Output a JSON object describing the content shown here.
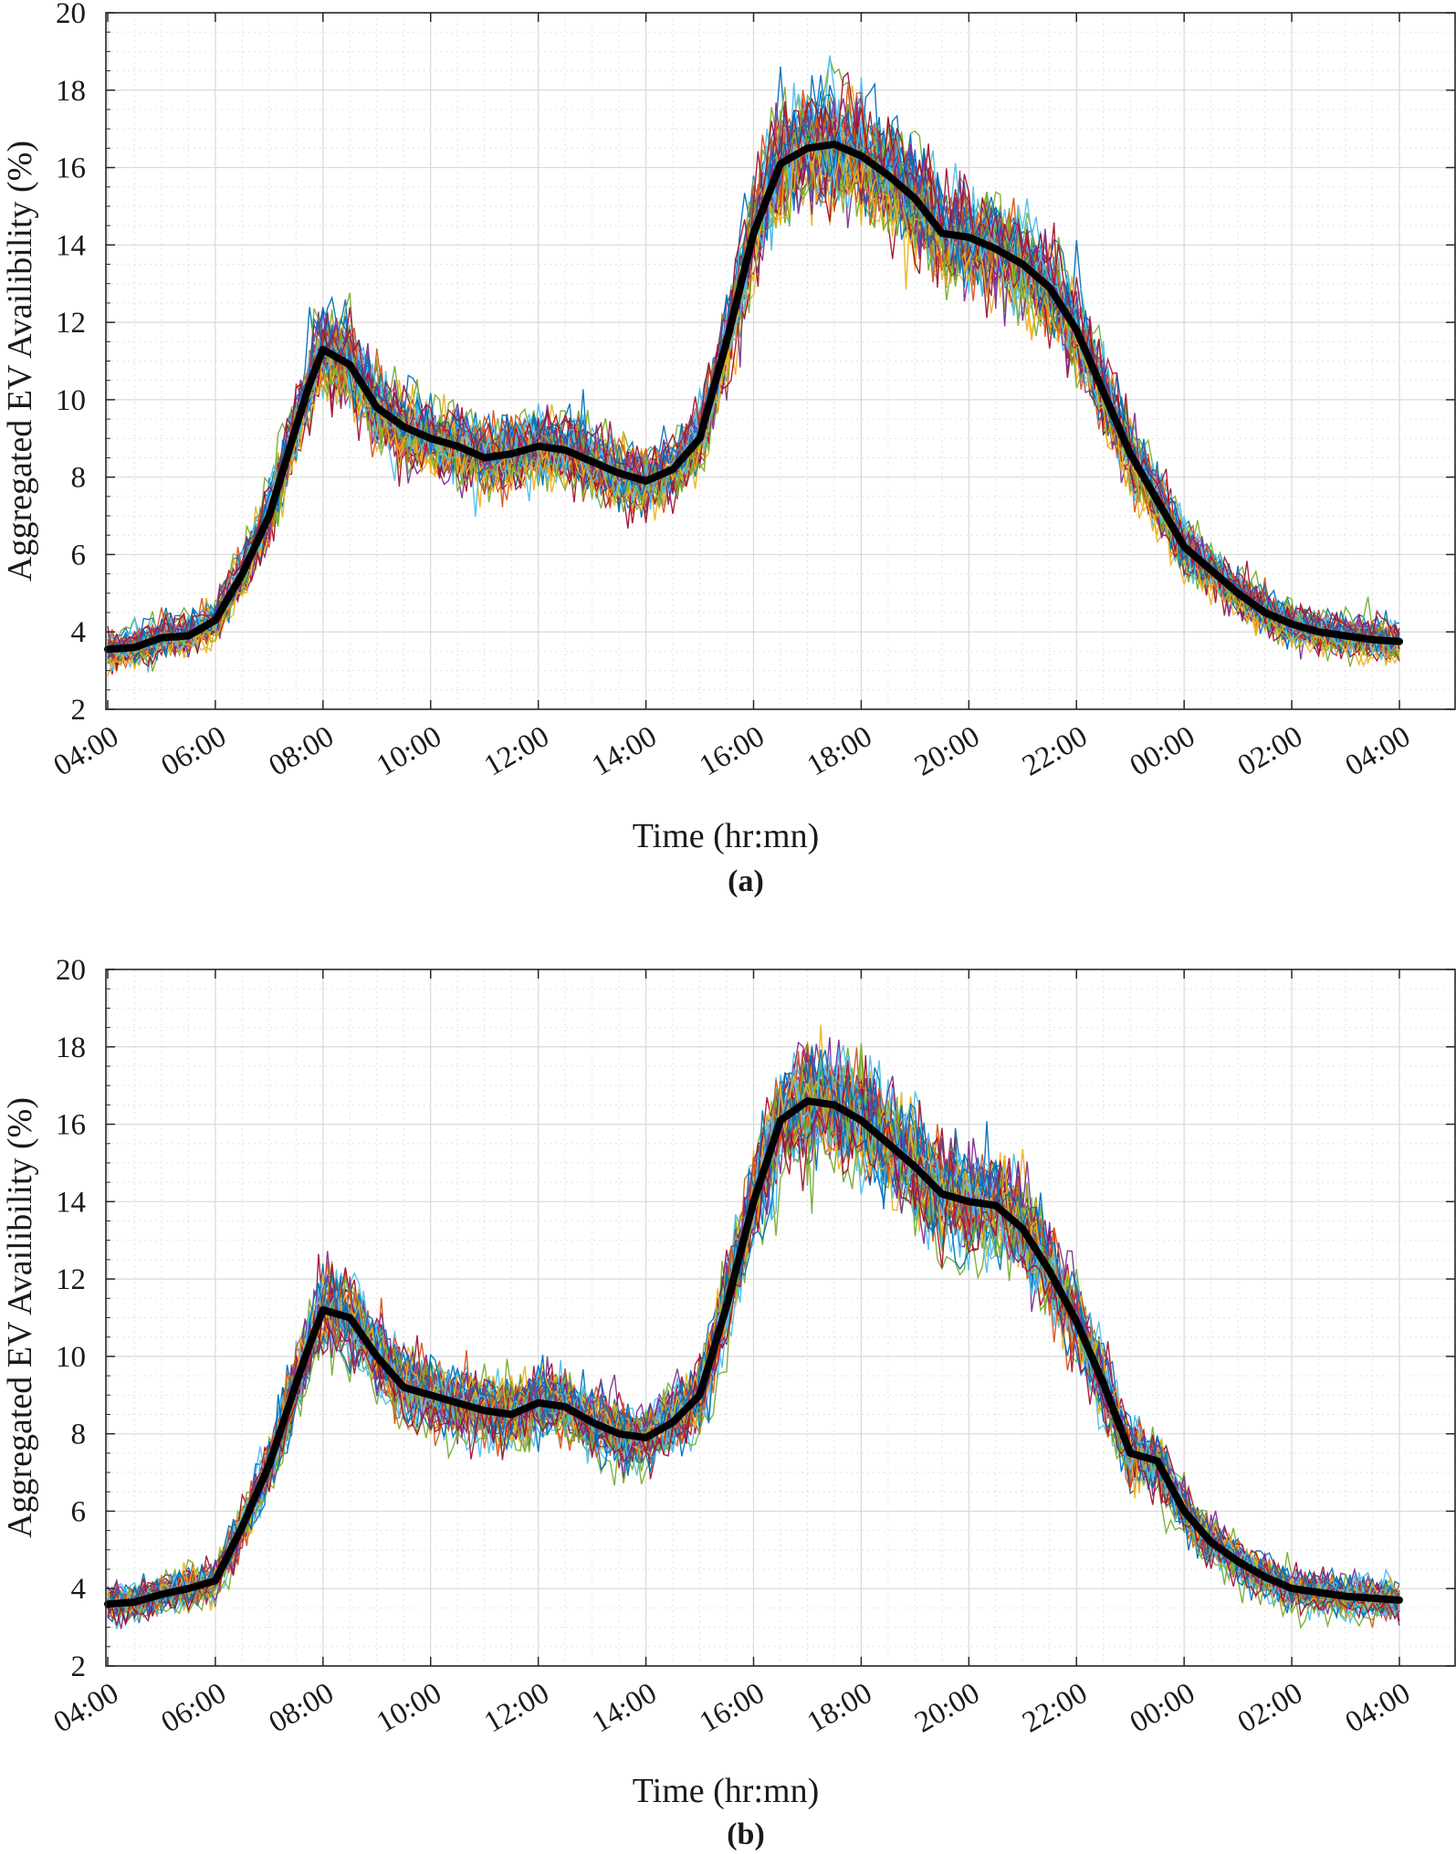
{
  "figure": {
    "panels": [
      "(a)",
      "(b)"
    ]
  },
  "chart_data": [
    {
      "type": "line",
      "panel_label": "(a)",
      "xlabel": "Time (hr:mn)",
      "ylabel": "Aggregated EV Availibility (%)",
      "x_tick_labels": [
        "04:00",
        "06:00",
        "08:00",
        "10:00",
        "12:00",
        "14:00",
        "16:00",
        "18:00",
        "20:00",
        "22:00",
        "00:00",
        "02:00",
        "04:00"
      ],
      "x_hours_from_0400": [
        0,
        24
      ],
      "ylim": [
        2,
        20
      ],
      "y_ticks": [
        2,
        4,
        6,
        8,
        10,
        12,
        14,
        16,
        18,
        20
      ],
      "grid": true,
      "ensemble": {
        "description_count": 50,
        "spread_low": 0.35,
        "spread_peak": 1.8,
        "colors": [
          "#0072BD",
          "#D95319",
          "#EDB120",
          "#7E2F8E",
          "#77AC30",
          "#4DBEEE",
          "#A2142F"
        ],
        "seed": 7
      },
      "mean_series": {
        "color": "#000000",
        "hours_from_0400": [
          0,
          0.5,
          1,
          1.5,
          2,
          2.5,
          3,
          3.5,
          3.75,
          4,
          4.5,
          5,
          5.5,
          6,
          6.5,
          7,
          7.5,
          8,
          8.5,
          9,
          9.5,
          10,
          10.5,
          11,
          11.5,
          12,
          12.5,
          13,
          13.5,
          14,
          14.5,
          15,
          15.5,
          16,
          16.5,
          17,
          17.5,
          18,
          18.5,
          19,
          19.5,
          20,
          20.5,
          21,
          21.5,
          22,
          22.5,
          23,
          23.5,
          24
        ],
        "values": [
          3.55,
          3.6,
          3.85,
          3.9,
          4.3,
          5.5,
          7.0,
          9.3,
          10.4,
          11.3,
          10.9,
          9.8,
          9.3,
          9.0,
          8.8,
          8.5,
          8.6,
          8.8,
          8.7,
          8.4,
          8.1,
          7.9,
          8.2,
          9.0,
          11.5,
          14.3,
          16.1,
          16.5,
          16.6,
          16.3,
          15.8,
          15.2,
          14.3,
          14.2,
          13.9,
          13.5,
          12.9,
          11.8,
          10.2,
          8.6,
          7.4,
          6.2,
          5.6,
          5.0,
          4.5,
          4.2,
          4.0,
          3.9,
          3.8,
          3.75
        ]
      }
    },
    {
      "type": "line",
      "panel_label": "(b)",
      "xlabel": "Time (hr:mn)",
      "ylabel": "Aggregated EV Availibility (%)",
      "x_tick_labels": [
        "04:00",
        "06:00",
        "08:00",
        "10:00",
        "12:00",
        "14:00",
        "16:00",
        "18:00",
        "20:00",
        "22:00",
        "00:00",
        "02:00",
        "04:00"
      ],
      "x_hours_from_0400": [
        0,
        24
      ],
      "ylim": [
        2,
        20
      ],
      "y_ticks": [
        2,
        4,
        6,
        8,
        10,
        12,
        14,
        16,
        18,
        20
      ],
      "grid": true,
      "ensemble": {
        "description_count": 50,
        "spread_low": 0.35,
        "spread_peak": 1.8,
        "colors": [
          "#0072BD",
          "#D95319",
          "#EDB120",
          "#7E2F8E",
          "#77AC30",
          "#4DBEEE",
          "#A2142F"
        ],
        "seed": 19
      },
      "mean_series": {
        "color": "#000000",
        "hours_from_0400": [
          0,
          0.5,
          1,
          1.5,
          2,
          2.5,
          3,
          3.5,
          3.75,
          4,
          4.5,
          5,
          5.5,
          6,
          6.5,
          7,
          7.5,
          8,
          8.5,
          9,
          9.5,
          10,
          10.5,
          11,
          11.5,
          12,
          12.5,
          13,
          13.5,
          14,
          14.5,
          15,
          15.5,
          16,
          16.5,
          17,
          17.5,
          18,
          18.5,
          19,
          19.5,
          20,
          20.5,
          21,
          21.5,
          22,
          22.5,
          23,
          23.5,
          24
        ],
        "values": [
          3.6,
          3.65,
          3.85,
          4.0,
          4.2,
          5.6,
          7.2,
          9.3,
          10.3,
          11.2,
          11.0,
          10.0,
          9.2,
          9.0,
          8.8,
          8.6,
          8.5,
          8.8,
          8.7,
          8.3,
          8.0,
          7.9,
          8.3,
          9.0,
          11.3,
          14.0,
          16.1,
          16.6,
          16.5,
          16.1,
          15.5,
          14.9,
          14.2,
          14.0,
          13.9,
          13.3,
          12.2,
          10.9,
          9.3,
          7.5,
          7.3,
          6.0,
          5.2,
          4.7,
          4.3,
          4.0,
          3.9,
          3.8,
          3.75,
          3.7
        ]
      }
    }
  ]
}
